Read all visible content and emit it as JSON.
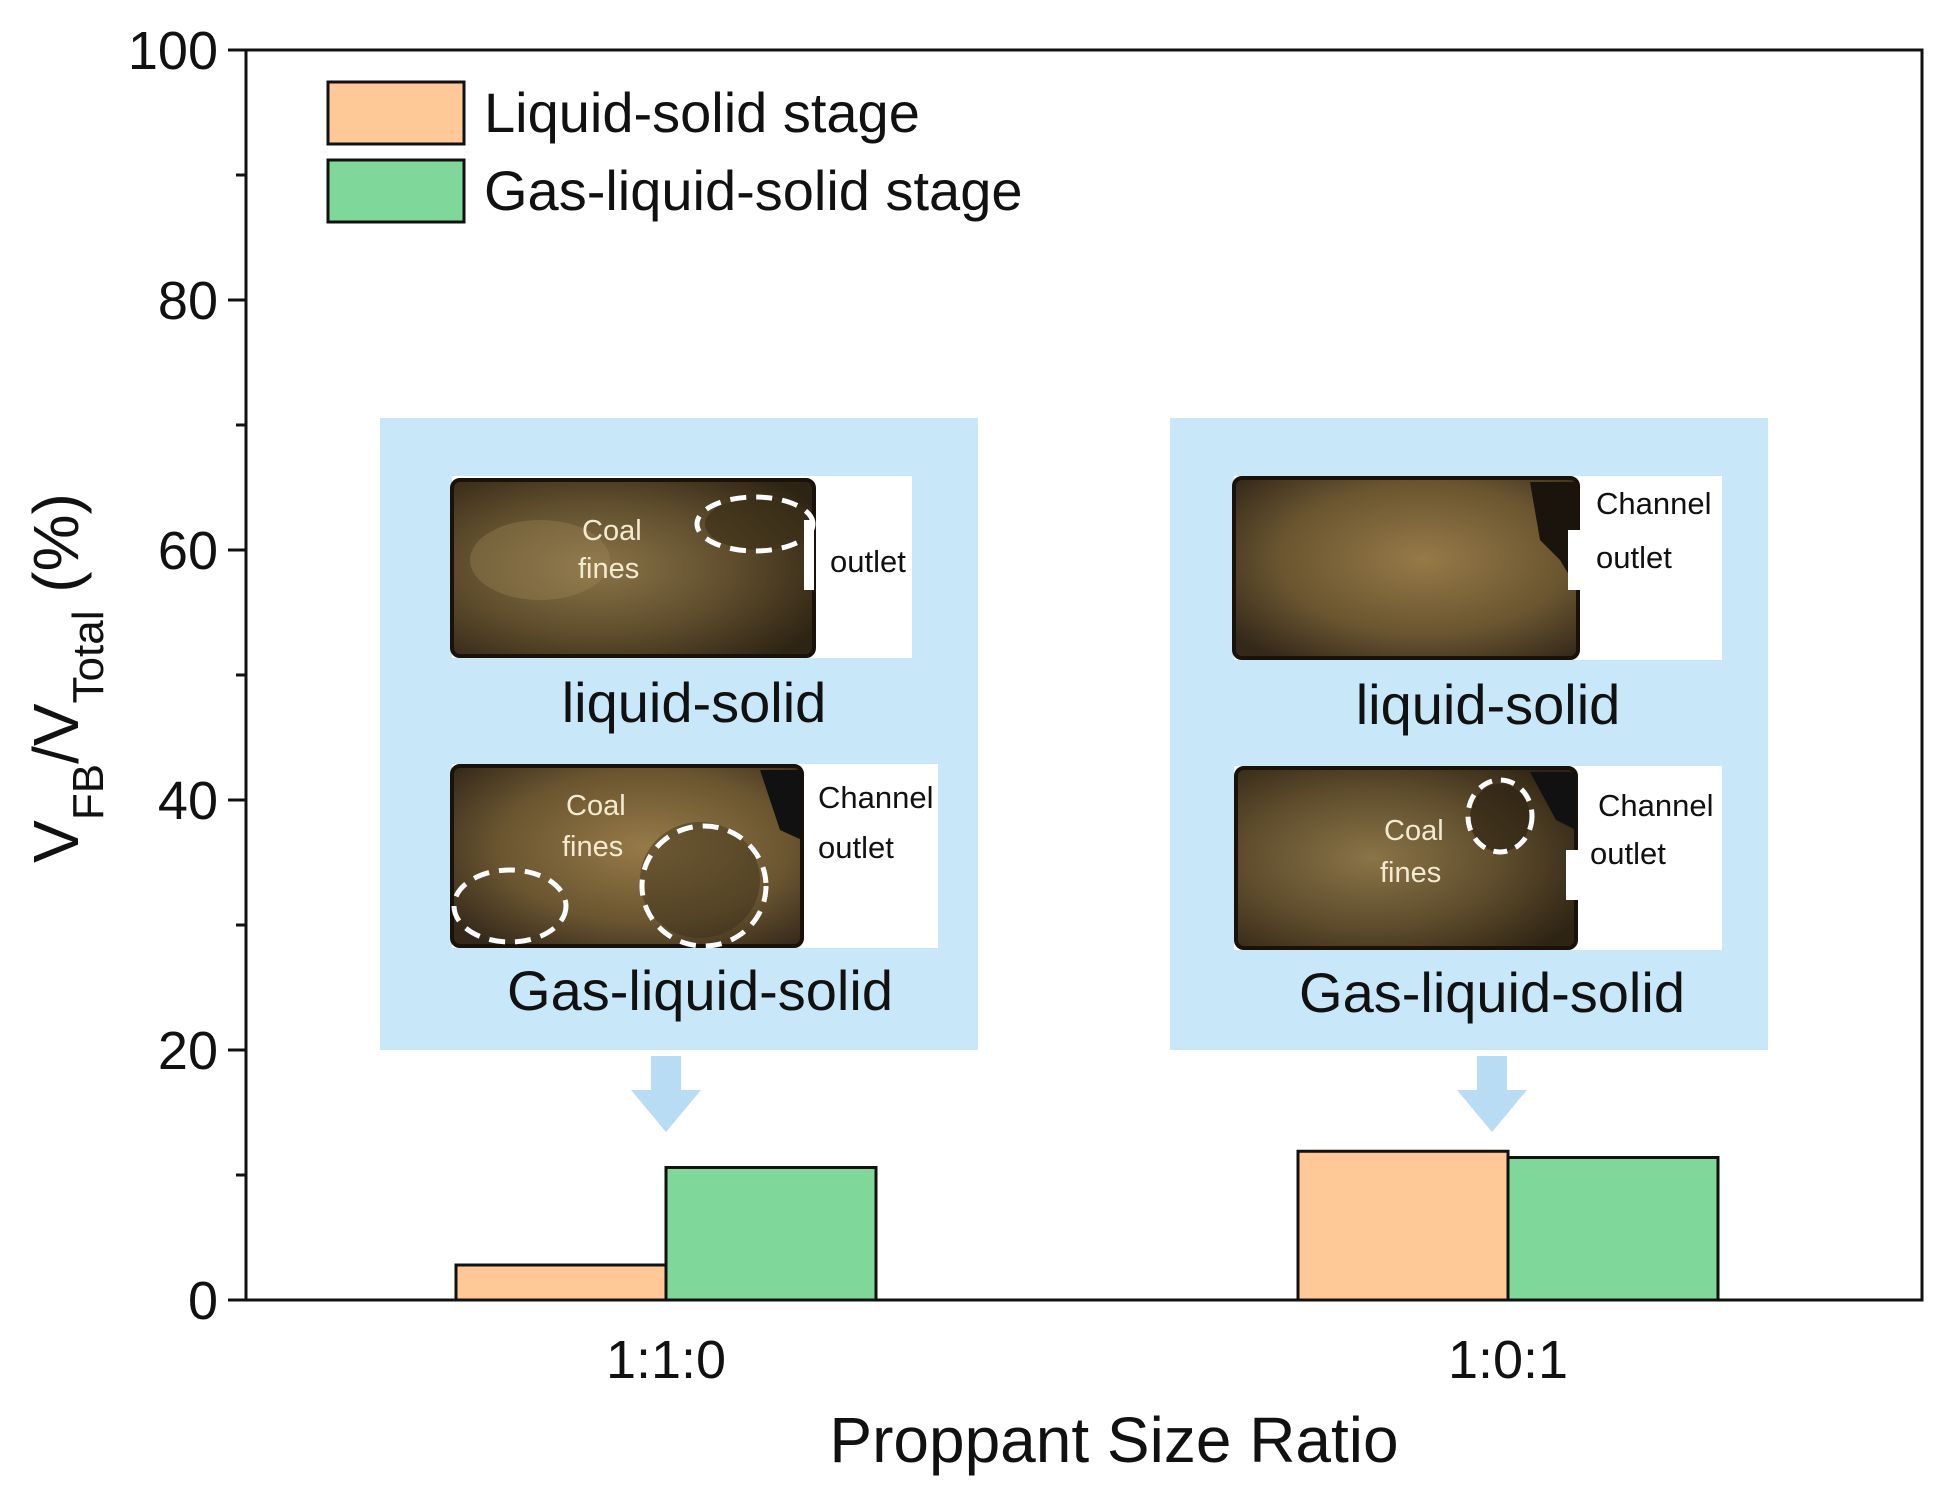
{
  "colors": {
    "liquid_solid": "#ffc896",
    "gas_liquid_solid": "#7fd89a",
    "inset_bg": "#c8e8fa",
    "arrow": "#b8dcf4"
  },
  "chart_data": {
    "type": "bar",
    "categories": [
      "1:1:0",
      "1:0:1"
    ],
    "series": [
      {
        "name": "Liquid-solid stage",
        "values": [
          2.8,
          11.9
        ]
      },
      {
        "name": "Gas-liquid-solid stage",
        "values": [
          10.6,
          11.4
        ]
      }
    ],
    "xlabel": "Proppant Size Ratio",
    "ylabel_parts": {
      "v1": "V",
      "sub1": "FB",
      "slash": "/V",
      "sub2": "Total",
      "unit": " (%)"
    },
    "ylim": [
      0,
      100
    ],
    "yticks": [
      0,
      20,
      40,
      60,
      80,
      100
    ],
    "legend": "top-left",
    "grid": false
  },
  "insets": [
    {
      "category": "1:1:0",
      "top_photo": {
        "note_line1": "Coal",
        "note_line2": "fines",
        "side_line1": "",
        "side_line2": "outlet"
      },
      "top_caption": "liquid-solid",
      "bottom_photo": {
        "note_line1": "Coal",
        "note_line2": "fines",
        "side_line1": "Channel",
        "side_line2": "outlet"
      },
      "bottom_caption": "Gas-liquid-solid"
    },
    {
      "category": "1:0:1",
      "top_photo": {
        "note_line1": "",
        "note_line2": "",
        "side_line1": "Channel",
        "side_line2": "outlet"
      },
      "top_caption": "liquid-solid",
      "bottom_photo": {
        "note_line1": "Coal",
        "note_line2": "fines",
        "side_line1": "Channel",
        "side_line2": "outlet"
      },
      "bottom_caption": "Gas-liquid-solid"
    }
  ]
}
